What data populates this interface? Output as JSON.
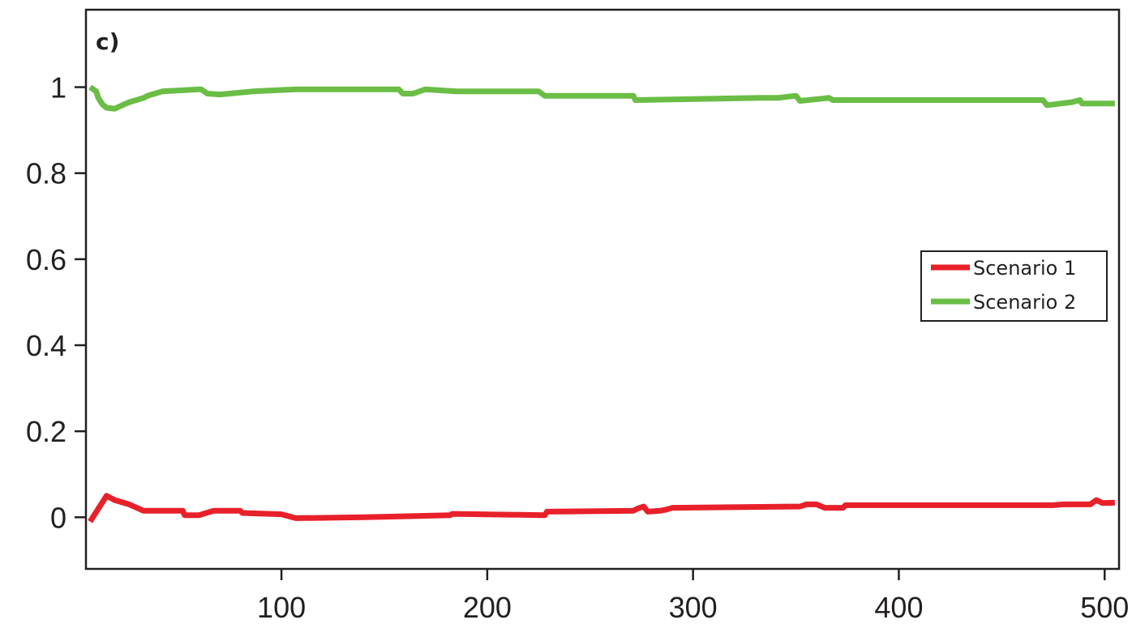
{
  "chart_data": {
    "type": "line",
    "title": "",
    "panel_label": "c)",
    "xlabel": "",
    "ylabel": "",
    "xlim": [
      5,
      507
    ],
    "ylim": [
      -0.12,
      1.18
    ],
    "x_ticks": [
      100,
      200,
      300,
      400,
      500
    ],
    "y_ticks": [
      0,
      0.2,
      0.4,
      0.6,
      0.8,
      1
    ],
    "x_tick_labels": [
      "100",
      "200",
      "300",
      "400",
      "500"
    ],
    "y_tick_labels": [
      "0",
      "0.2",
      "0.4",
      "0.6",
      "0.8",
      "1"
    ],
    "grid": false,
    "legend_position": "right",
    "series": [
      {
        "name": "Scenario 1",
        "color": "#e8202a",
        "x": [
          7,
          15,
          19,
          26,
          33,
          52,
          53,
          60,
          67,
          80,
          81,
          100,
          107,
          140,
          182,
          183,
          228,
          229,
          271,
          273,
          276,
          278,
          284,
          287,
          290,
          352,
          355,
          360,
          364,
          373,
          374,
          475,
          480,
          493,
          496,
          499,
          505
        ],
        "y": [
          -0.01,
          0.05,
          0.04,
          0.03,
          0.015,
          0.015,
          0.005,
          0.005,
          0.015,
          0.015,
          0.01,
          0.007,
          -0.002,
          0.0,
          0.005,
          0.008,
          0.005,
          0.013,
          0.015,
          0.02,
          0.025,
          0.013,
          0.015,
          0.018,
          0.022,
          0.025,
          0.03,
          0.03,
          0.022,
          0.022,
          0.028,
          0.028,
          0.03,
          0.03,
          0.04,
          0.033,
          0.034
        ]
      },
      {
        "name": "Scenario 2",
        "color": "#6abd45",
        "x": [
          7,
          10,
          11,
          13,
          15,
          19,
          26,
          33,
          35,
          42,
          60,
          61,
          64,
          70,
          86,
          107,
          157,
          159,
          164,
          170,
          185,
          225,
          228,
          271,
          272,
          333,
          341,
          350,
          352,
          366,
          368,
          470,
          472,
          484,
          488,
          489,
          505
        ],
        "y": [
          1.0,
          0.99,
          0.975,
          0.96,
          0.952,
          0.95,
          0.965,
          0.975,
          0.98,
          0.99,
          0.995,
          0.995,
          0.985,
          0.983,
          0.99,
          0.995,
          0.995,
          0.985,
          0.985,
          0.995,
          0.99,
          0.99,
          0.98,
          0.98,
          0.97,
          0.975,
          0.975,
          0.98,
          0.968,
          0.975,
          0.97,
          0.97,
          0.958,
          0.965,
          0.97,
          0.962,
          0.962
        ]
      }
    ]
  }
}
